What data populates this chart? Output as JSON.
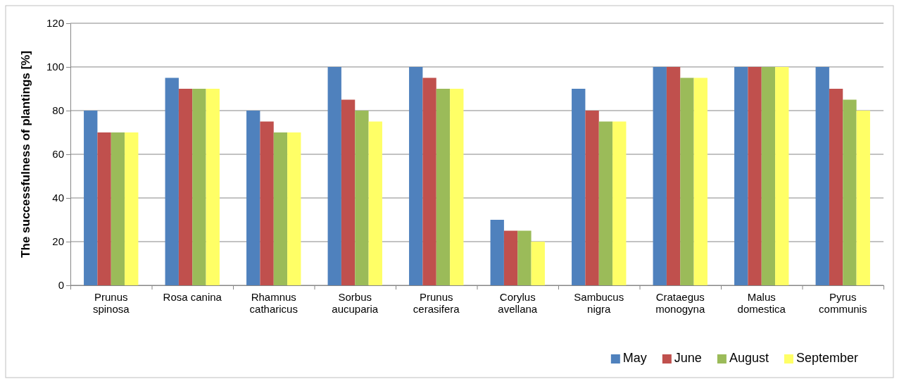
{
  "chart_data": {
    "type": "bar",
    "ylabel": "The successfulness  of plantings [%]",
    "categories": [
      "Prunus spinosa",
      "Rosa canina",
      "Rhamnus catharicus",
      "Sorbus aucuparia",
      "Prunus cerasifera",
      "Corylus avellana",
      "Sambucus nigra",
      "Crataegus monogyna",
      "Malus domestica",
      "Pyrus communis"
    ],
    "series": [
      {
        "name": "May",
        "color": "#4f81bd",
        "values": [
          80,
          95,
          80,
          100,
          100,
          30,
          90,
          100,
          100,
          100
        ]
      },
      {
        "name": "June",
        "color": "#c0504d",
        "values": [
          70,
          90,
          75,
          85,
          95,
          25,
          80,
          100,
          100,
          90
        ]
      },
      {
        "name": "August",
        "color": "#9bbb59",
        "values": [
          70,
          90,
          70,
          80,
          90,
          25,
          75,
          95,
          100,
          85
        ]
      },
      {
        "name": "September",
        "color": "#ffff66",
        "values": [
          70,
          90,
          70,
          75,
          90,
          20,
          75,
          95,
          100,
          80
        ]
      }
    ],
    "ylim": [
      0,
      120
    ],
    "yticks": [
      0,
      20,
      40,
      60,
      80,
      100,
      120
    ],
    "grid": "y",
    "legend": "bottom right"
  }
}
